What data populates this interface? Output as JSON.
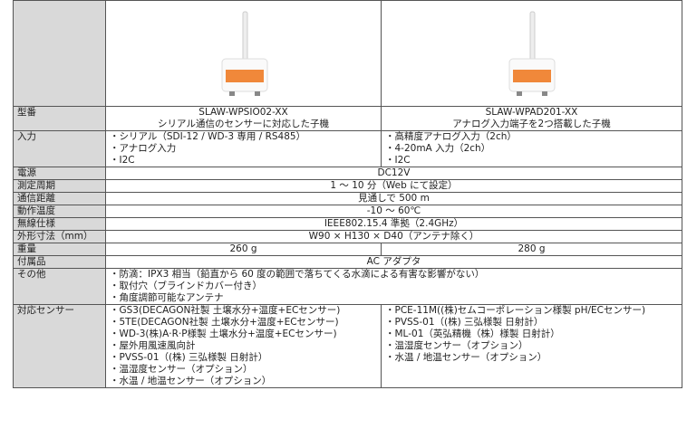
{
  "rows": [
    {
      "label": "型番",
      "cells": [
        [
          "SLAW-WPSIO02-XX",
          "シリアル通信のセンサーに対応した子機"
        ],
        [
          "SLAW-WPAD201-XX",
          "アナログ入力端子を2つ搭載した子機"
        ]
      ]
    },
    {
      "label": "入力",
      "cells": [
        [
          "・シリアル（SDI-12 / WD-3 専用 / RS485）",
          "・アナログ入力",
          "・I2C"
        ],
        [
          "・高精度アナログ入力（2ch）",
          "・4-20mA 入力（2ch）",
          "・I2C"
        ]
      ]
    },
    {
      "label": "電源",
      "cells": [
        [
          "DC12V"
        ]
      ]
    },
    {
      "label": "測定周期",
      "cells": [
        [
          "1 ～ 10 分（Web にて設定）"
        ]
      ]
    },
    {
      "label": "通信距離",
      "cells": [
        [
          "見通しで 500 m"
        ]
      ]
    },
    {
      "label": "動作温度",
      "cells": [
        [
          "-10 ～ 60℃"
        ]
      ]
    },
    {
      "label": "無線仕様",
      "cells": [
        [
          "IEEE802.15.4 準拠（2.4GHz）"
        ]
      ]
    },
    {
      "label": "外形寸法（mm）",
      "cells": [
        [
          "W90 × H130 × D40（アンテナ除く）"
        ]
      ]
    },
    {
      "label": "重量",
      "cells": [
        [
          "260 g"
        ],
        [
          "280 g"
        ]
      ]
    },
    {
      "label": "付属品",
      "cells": [
        [
          "AC アダプタ"
        ]
      ]
    },
    {
      "label": "その他",
      "cells": [
        [
          "・防滴：IPX3 相当（鉛直から 60 度の範囲で落ちてくる水滴による有害な影響がない）",
          "・取付穴（ブラインドカバー付き）",
          "・角度調節可能なアンテナ"
        ]
      ]
    },
    {
      "label": "対応センサー",
      "cells": [
        [
          "・GS3(DECAGON社製 土壌水分+温度+ECセンサー)",
          "・5TE(DECAGON社製 土壌水分+温度+ECセンサー)",
          "・WD-3(株)A·R·P様製 土壌水分+温度+ECセンサー)",
          "・屋外用風速風向計",
          "・PVSS-01（(株) 三弘様製 日射計）",
          "・温湿度センサー（オプション）",
          "・水温 / 地温センサー（オプション）"
        ],
        [
          "・PCE-11M((株)セムコーポレーション様製 pH/ECセンサー)",
          "・PVSS-01（(株) 三弘様製 日射計）",
          "・ML-01（英弘精機（株）様製 日射計）",
          "・温湿度センサー（オプション）",
          "・水温 / 地温センサー（オプション）"
        ]
      ]
    }
  ]
}
